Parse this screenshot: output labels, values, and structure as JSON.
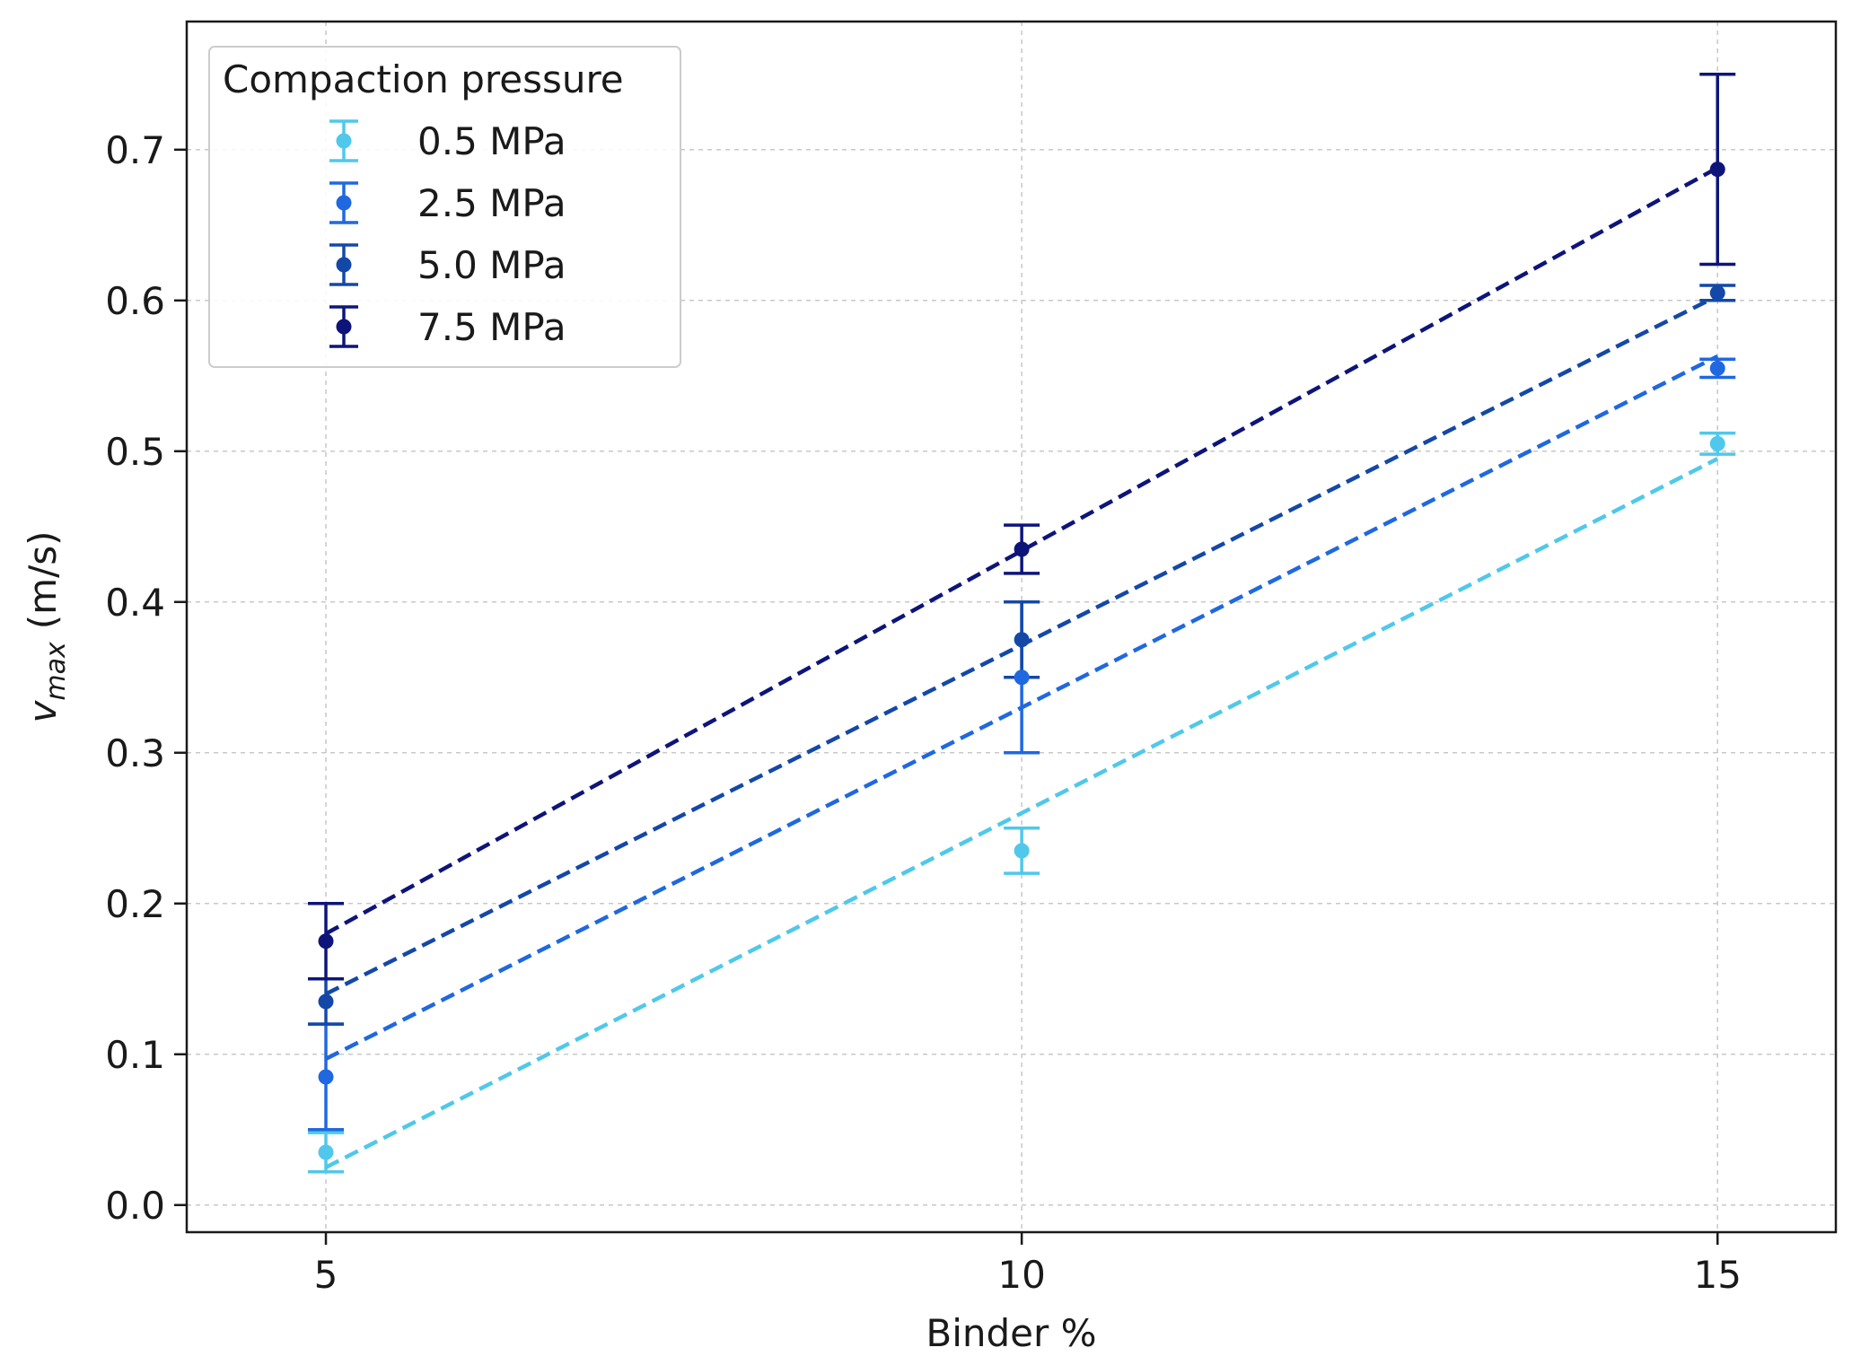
{
  "chart_data": {
    "type": "scatter",
    "title": "",
    "xlabel": "Binder %",
    "ylabel": {
      "main": "v",
      "subscript": "max",
      "unit": "(m/s)"
    },
    "xlim": [
      4,
      15.85
    ],
    "ylim": [
      -0.018,
      0.785
    ],
    "xticks": [
      5,
      10,
      15
    ],
    "xtick_labels": [
      "5",
      "10",
      "15"
    ],
    "yticks": [
      0.0,
      0.1,
      0.2,
      0.3,
      0.4,
      0.5,
      0.6,
      0.7
    ],
    "ytick_labels": [
      "0.0",
      "0.1",
      "0.2",
      "0.3",
      "0.4",
      "0.5",
      "0.6",
      "0.7"
    ],
    "grid": true,
    "legend": {
      "title": "Compaction pressure",
      "placement": "top-left"
    },
    "series": [
      {
        "name": "0.5 MPa",
        "color": "#4fc8eb",
        "x": [
          5,
          10,
          15
        ],
        "y": [
          0.035,
          0.235,
          0.505
        ],
        "yerr": [
          0.013,
          0.015,
          0.007
        ],
        "fit": [
          0.025,
          0.495
        ]
      },
      {
        "name": "2.5 MPa",
        "color": "#1f68e0",
        "x": [
          5,
          10,
          15
        ],
        "y": [
          0.085,
          0.35,
          0.555
        ],
        "yerr": [
          0.035,
          0.05,
          0.006
        ],
        "fit": [
          0.097,
          0.563
        ]
      },
      {
        "name": "5.0 MPa",
        "color": "#1448a8",
        "x": [
          5,
          10,
          15
        ],
        "y": [
          0.135,
          0.375,
          0.605
        ],
        "yerr": [
          0.015,
          0.025,
          0.005
        ],
        "fit": [
          0.14,
          0.603
        ]
      },
      {
        "name": "7.5 MPa",
        "color": "#0d157a",
        "x": [
          5,
          10,
          15
        ],
        "y": [
          0.175,
          0.435,
          0.687
        ],
        "yerr": [
          0.025,
          0.016,
          0.063
        ],
        "fit": [
          0.18,
          0.688
        ]
      }
    ]
  }
}
